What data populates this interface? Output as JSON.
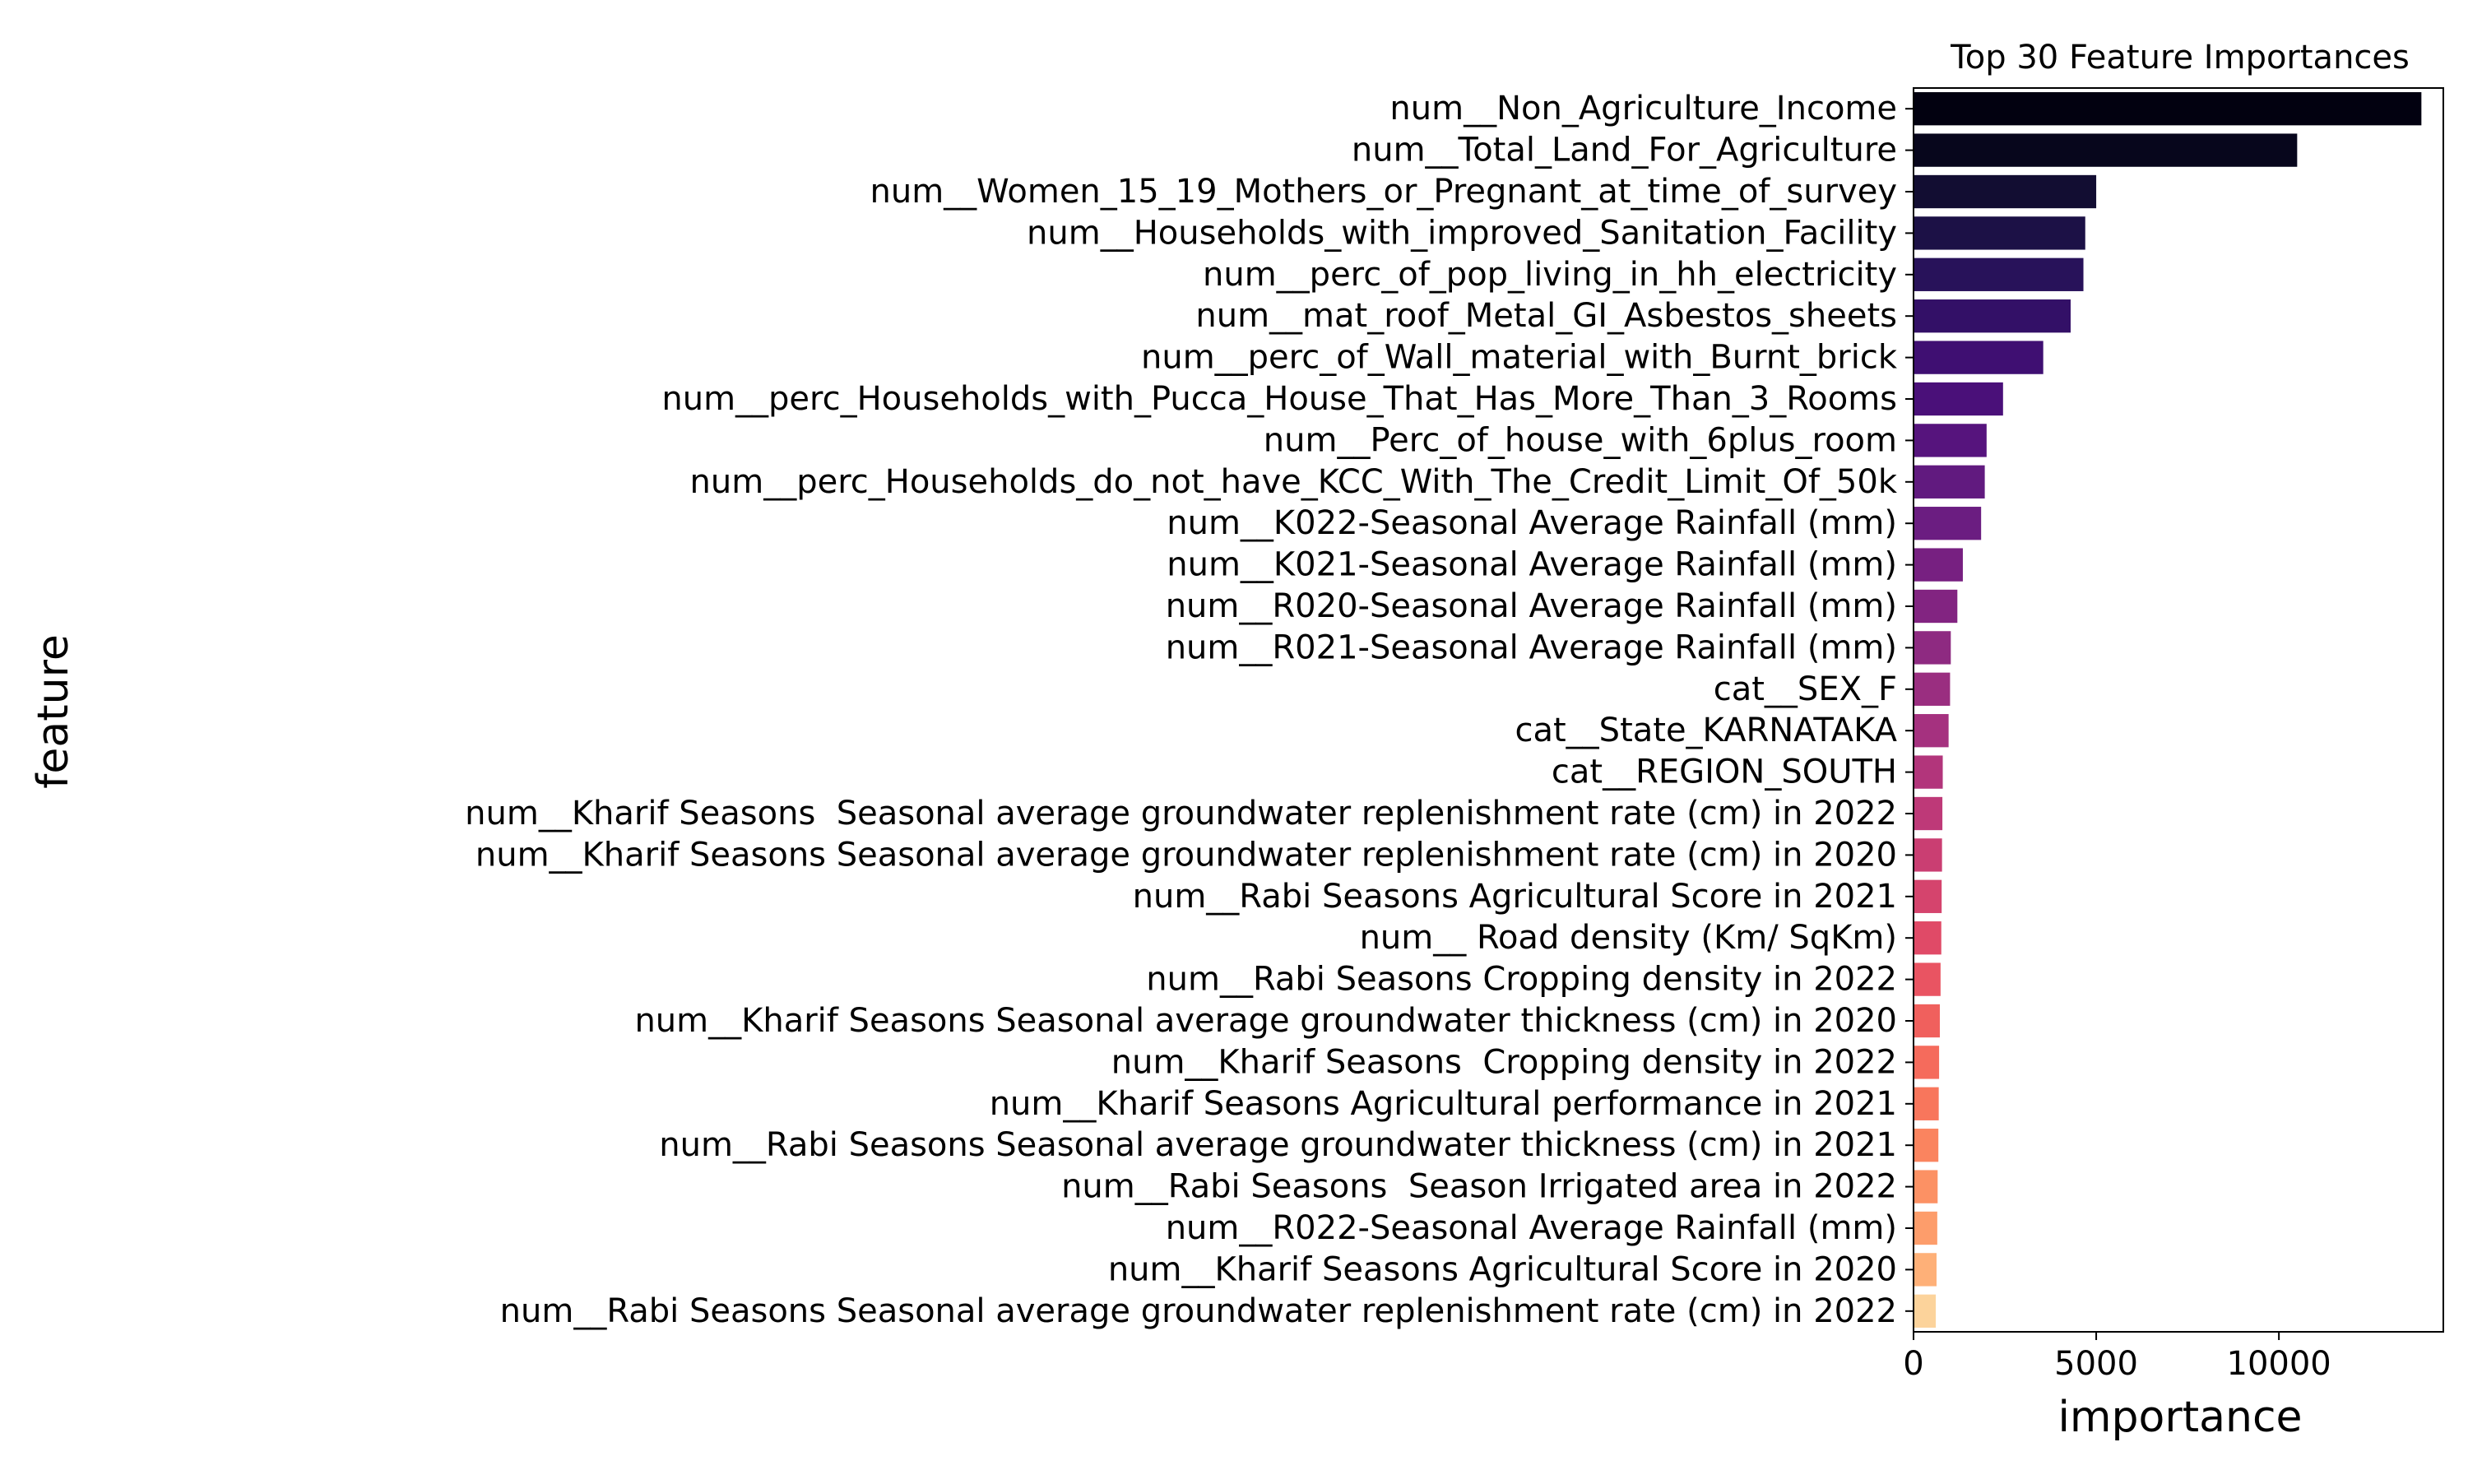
{
  "chart_data": {
    "type": "bar",
    "orientation": "horizontal",
    "title": "Top 30 Feature Importances",
    "xlabel": "importance",
    "ylabel": "feature",
    "xlim": [
      0,
      14500
    ],
    "xticks": [
      0,
      5000,
      10000
    ],
    "grid": false,
    "legend": "none",
    "colormap": "magma",
    "categories": [
      "num__Non_Agriculture_Income",
      "num__Total_Land_For_Agriculture",
      "num__Women_15_19_Mothers_or_Pregnant_at_time_of_survey",
      "num__Households_with_improved_Sanitation_Facility",
      "num__perc_of_pop_living_in_hh_electricity",
      "num__mat_roof_Metal_GI_Asbestos_sheets",
      "num__perc_of_Wall_material_with_Burnt_brick",
      "num__perc_Households_with_Pucca_House_That_Has_More_Than_3_Rooms",
      "num__Perc_of_house_with_6plus_room",
      "num__perc_Households_do_not_have_KCC_With_The_Credit_Limit_Of_50k",
      "num__K022-Seasonal Average Rainfall (mm)",
      "num__K021-Seasonal Average Rainfall (mm)",
      "num__R020-Seasonal Average Rainfall (mm)",
      "num__R021-Seasonal Average Rainfall (mm)",
      "cat__SEX_F",
      "cat__State_KARNATAKA",
      "cat__REGION_SOUTH",
      "num__Kharif Seasons  Seasonal average groundwater replenishment rate (cm) in 2022",
      "num__Kharif Seasons Seasonal average groundwater replenishment rate (cm) in 2020",
      "num__Rabi Seasons Agricultural Score in 2021",
      "num__ Road density (Km/ SqKm)",
      "num__Rabi Seasons Cropping density in 2022",
      "num__Kharif Seasons Seasonal average groundwater thickness (cm) in 2020",
      "num__Kharif Seasons  Cropping density in 2022",
      "num__Kharif Seasons Agricultural performance in 2021",
      "num__Rabi Seasons Seasonal average groundwater thickness (cm) in 2021",
      "num__Rabi Seasons  Season Irrigated area in 2022",
      "num__R022-Seasonal Average Rainfall (mm)",
      "num__Kharif Seasons Agricultural Score in 2020",
      "num__Rabi Seasons Seasonal average groundwater replenishment rate (cm) in 2022"
    ],
    "values": [
      13900,
      10500,
      5000,
      4700,
      4650,
      4300,
      3550,
      2450,
      2000,
      1950,
      1850,
      1350,
      1200,
      1020,
      1000,
      960,
      800,
      790,
      780,
      770,
      760,
      740,
      720,
      700,
      690,
      680,
      660,
      650,
      630,
      610
    ],
    "colors": [
      "#020110",
      "#07061c",
      "#120d32",
      "#1c1146",
      "#28125a",
      "#331067",
      "#3f0f72",
      "#4a1079",
      "#56147d",
      "#611a7f",
      "#6b1d81",
      "#772081",
      "#822481",
      "#8e2a81",
      "#9a2e80",
      "#a5317f",
      "#b2357b",
      "#be3978",
      "#ca3e72",
      "#d5446d",
      "#e04a67",
      "#e95462",
      "#f0605d",
      "#f56b5c",
      "#f8765c",
      "#fa845f",
      "#fc9164",
      "#fd9d6b",
      "#feb078",
      "#fcd39b"
    ]
  }
}
